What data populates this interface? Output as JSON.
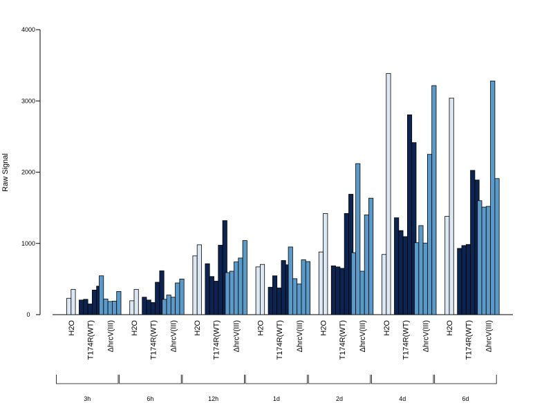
{
  "chart_data": {
    "type": "bar",
    "title": "",
    "xlabel": "",
    "ylabel": "Raw Signal",
    "ylim": [
      0,
      4000
    ],
    "yticks": [
      0,
      1000,
      2000,
      3000,
      4000
    ],
    "grid": false,
    "colors": {
      "H2O": "#dbe7f3",
      "T174R(WT)": "#0d2350",
      "ΔhrcV(III)": "#5b9ac8",
      "outline": "#000000"
    },
    "groups": [
      {
        "label": "3h",
        "conditions": [
          {
            "name": "H2O",
            "values": [
              230,
              355
            ]
          },
          {
            "name": "T174R(WT)",
            "values": [
              205,
              215,
              150,
              345,
              400
            ]
          },
          {
            "name": "ΔhrcV(III)",
            "values": [
              545,
              220,
              185,
              190,
              325
            ]
          }
        ]
      },
      {
        "label": "6h",
        "conditions": [
          {
            "name": "H2O",
            "values": [
              195,
              355
            ]
          },
          {
            "name": "T174R(WT)",
            "values": [
              245,
              205,
              170,
              455,
              615
            ]
          },
          {
            "name": "ΔhrcV(III)",
            "values": [
              215,
              275,
              245,
              445,
              500
            ]
          }
        ]
      },
      {
        "label": "12h",
        "conditions": [
          {
            "name": "H2O",
            "values": [
              825,
              980
            ]
          },
          {
            "name": "T174R(WT)",
            "values": [
              715,
              535,
              470,
              975,
              1320
            ]
          },
          {
            "name": "ΔhrcV(III)",
            "values": [
              590,
              610,
              740,
              795,
              1040
            ]
          }
        ]
      },
      {
        "label": "1d",
        "conditions": [
          {
            "name": "H2O",
            "values": [
              670,
              705
            ]
          },
          {
            "name": "T174R(WT)",
            "values": [
              385,
              545,
              375,
              760,
              700
            ]
          },
          {
            "name": "ΔhrcV(III)",
            "values": [
              950,
              505,
              430,
              770,
              745
            ]
          }
        ]
      },
      {
        "label": "2d",
        "conditions": [
          {
            "name": "H2O",
            "values": [
              880,
              1420
            ]
          },
          {
            "name": "T174R(WT)",
            "values": [
              685,
              670,
              650,
              1420,
              1690
            ]
          },
          {
            "name": "ΔhrcV(III)",
            "values": [
              870,
              2120,
              610,
              1400,
              1635
            ]
          }
        ]
      },
      {
        "label": "4d",
        "conditions": [
          {
            "name": "H2O",
            "values": [
              845,
              3385
            ]
          },
          {
            "name": "T174R(WT)",
            "values": [
              1360,
              1180,
              1095,
              2805,
              2415
            ]
          },
          {
            "name": "ΔhrcV(III)",
            "values": [
              1010,
              1250,
              1005,
              2250,
              3215
            ]
          }
        ]
      },
      {
        "label": "6d",
        "conditions": [
          {
            "name": "H2O",
            "values": [
              1380,
              3040
            ]
          },
          {
            "name": "T174R(WT)",
            "values": [
              930,
              970,
              985,
              2025,
              1890
            ]
          },
          {
            "name": "ΔhrcV(III)",
            "values": [
              1600,
              1510,
              1520,
              3280,
              1910
            ]
          }
        ]
      }
    ]
  }
}
